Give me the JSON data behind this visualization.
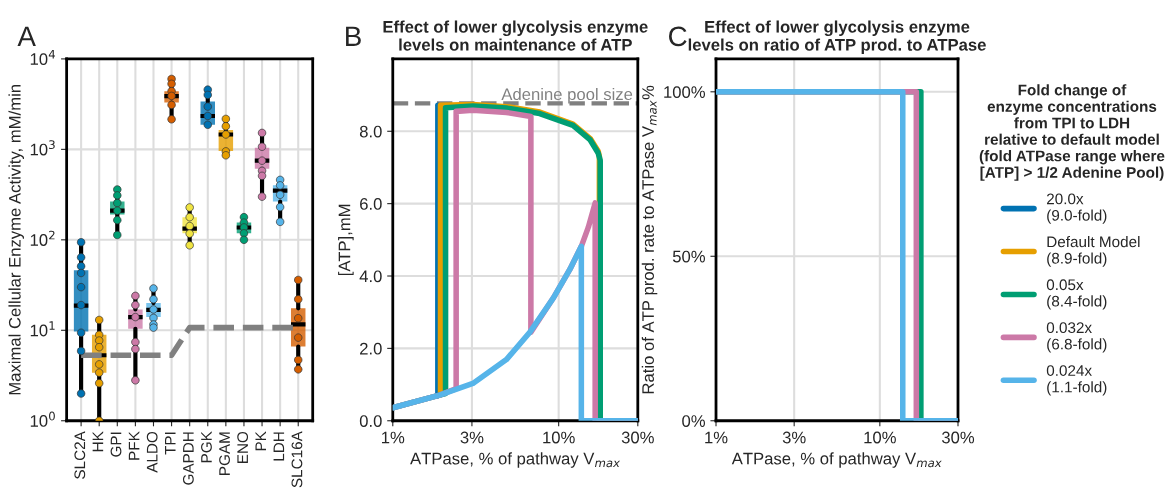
{
  "chart_data": [
    {
      "type": "box",
      "ylabel": "Maximal Cellular Enzyme Activity, mM/min",
      "annotations": [
        "A"
      ],
      "categories": [
        "SLC2A",
        "HK",
        "GPI",
        "PFK",
        "ALDO",
        "TPI",
        "GAPDH",
        "PGK",
        "PGAM",
        "ENO",
        "PK",
        "LDH",
        "SLC16A"
      ],
      "colors": [
        "#0072b2",
        "#e69f00",
        "#009e73",
        "#cc79a7",
        "#56b4e9",
        "#d55e00",
        "#f0e442",
        "#0072b2",
        "#e69f00",
        "#009e73",
        "#cc79a7",
        "#56b4e9",
        "#d55e00"
      ],
      "boxes": [
        {
          "low": 2.0,
          "q1": 9.7,
          "median": 18.7,
          "q3": 46,
          "high": 94
        },
        {
          "low": 1.0,
          "q1": 3.4,
          "median": 5.3,
          "q3": 8.9,
          "high": 13
        },
        {
          "low": 113,
          "q1": 190,
          "median": 210,
          "q3": 265,
          "high": 360
        },
        {
          "low": 2.8,
          "q1": 10.4,
          "median": 14,
          "q3": 17,
          "high": 24
        },
        {
          "low": 10.7,
          "q1": 14,
          "median": 16.8,
          "q3": 20,
          "high": 29
        },
        {
          "low": 2150,
          "q1": 3300,
          "median": 3880,
          "q3": 4400,
          "high": 6000
        },
        {
          "low": 87,
          "q1": 118,
          "median": 133,
          "q3": 178,
          "high": 228
        },
        {
          "low": 1820,
          "q1": 1870,
          "median": 2340,
          "q3": 3380,
          "high": 4570
        },
        {
          "low": 860,
          "q1": 960,
          "median": 1460,
          "q3": 1640,
          "high": 2170
        },
        {
          "low": 100,
          "q1": 118,
          "median": 137,
          "q3": 155,
          "high": 178
        },
        {
          "low": 300,
          "q1": 610,
          "median": 750,
          "q3": 1040,
          "high": 1520
        },
        {
          "low": 158,
          "q1": 265,
          "median": 350,
          "q3": 400,
          "high": 460
        },
        {
          "low": 3.7,
          "q1": 6.6,
          "median": 11.6,
          "q3": 17.5,
          "high": 36
        }
      ],
      "series": [
        {
          "type": "scatter",
          "x": [
            "SLC2A",
            "SLC2A",
            "SLC2A",
            "SLC2A",
            "SLC2A",
            "SLC2A",
            "SLC2A",
            "SLC2A",
            "SLC2A",
            "HK",
            "HK",
            "HK",
            "HK",
            "HK",
            "HK",
            "HK",
            "HK",
            "GPI",
            "GPI",
            "GPI",
            "GPI",
            "GPI",
            "GPI",
            "PFK",
            "PFK",
            "PFK",
            "PFK",
            "PFK",
            "PFK",
            "ALDO",
            "ALDO",
            "ALDO",
            "ALDO",
            "ALDO",
            "ALDO",
            "TPI",
            "TPI",
            "TPI",
            "TPI",
            "TPI",
            "TPI",
            "GAPDH",
            "GAPDH",
            "GAPDH",
            "GAPDH",
            "GAPDH",
            "PGK",
            "PGK",
            "PGK",
            "PGK",
            "PGK",
            "PGAM",
            "PGAM",
            "PGAM",
            "PGAM",
            "PGAM",
            "ENO",
            "ENO",
            "ENO",
            "ENO",
            "ENO",
            "PK",
            "PK",
            "PK",
            "PK",
            "PK",
            "PK",
            "LDH",
            "LDH",
            "LDH",
            "LDH",
            "LDH",
            "SLC16A",
            "SLC16A",
            "SLC16A",
            "SLC16A",
            "SLC16A",
            "SLC16A"
          ],
          "values": [
            94,
            64,
            51,
            43,
            30,
            19,
            9.4,
            5.9,
            2.0,
            13,
            8.9,
            7.7,
            6.5,
            4.2,
            3.4,
            2.6,
            1.0,
            360,
            310,
            255,
            210,
            165,
            113,
            24,
            19,
            14,
            7.4,
            6.2,
            2.8,
            29,
            22,
            17,
            13.7,
            11.6,
            10.7,
            6000,
            5300,
            4400,
            3900,
            3100,
            2150,
            228,
            178,
            142,
            117,
            87,
            4570,
            4000,
            2970,
            2340,
            1870,
            2170,
            1800,
            1460,
            950,
            860,
            178,
            155,
            137,
            118,
            100,
            1520,
            1070,
            750,
            580,
            510,
            300,
            460,
            400,
            315,
            230,
            158,
            36,
            22,
            13.6,
            8.3,
            4.7,
            3.7
          ],
          "colors": [
            "#0072b2",
            "#0072b2",
            "#0072b2",
            "#0072b2",
            "#0072b2",
            "#0072b2",
            "#0072b2",
            "#0072b2",
            "#0072b2",
            "#e69f00",
            "#e69f00",
            "#e69f00",
            "#e69f00",
            "#e69f00",
            "#e69f00",
            "#e69f00",
            "#e69f00",
            "#009e73",
            "#009e73",
            "#009e73",
            "#009e73",
            "#009e73",
            "#009e73",
            "#cc79a7",
            "#cc79a7",
            "#cc79a7",
            "#cc79a7",
            "#cc79a7",
            "#cc79a7",
            "#56b4e9",
            "#56b4e9",
            "#56b4e9",
            "#56b4e9",
            "#56b4e9",
            "#56b4e9",
            "#d55e00",
            "#d55e00",
            "#d55e00",
            "#d55e00",
            "#d55e00",
            "#d55e00",
            "#f0e442",
            "#f0e442",
            "#f0e442",
            "#f0e442",
            "#f0e442",
            "#0072b2",
            "#0072b2",
            "#0072b2",
            "#0072b2",
            "#0072b2",
            "#e69f00",
            "#e69f00",
            "#e69f00",
            "#e69f00",
            "#e69f00",
            "#009e73",
            "#009e73",
            "#009e73",
            "#009e73",
            "#009e73",
            "#cc79a7",
            "#cc79a7",
            "#cc79a7",
            "#cc79a7",
            "#cc79a7",
            "#cc79a7",
            "#56b4e9",
            "#56b4e9",
            "#56b4e9",
            "#56b4e9",
            "#56b4e9",
            "#d55e00",
            "#d55e00",
            "#d55e00",
            "#d55e00",
            "#d55e00",
            "#d55e00"
          ]
        },
        {
          "type": "line",
          "color": "#808080",
          "line_style": "dashed",
          "values": [
            5.3,
            5.3,
            5.3,
            5.3,
            5.3,
            5.3,
            10.7,
            10.7,
            10.7,
            10.7,
            10.7,
            10.7,
            10.7
          ]
        }
      ],
      "log": "y",
      "ylim": [
        1,
        10000
      ],
      "yticks": [
        {
          "value": 1,
          "label": "10$^{0}$"
        },
        {
          "value": 10,
          "label": "10$^{1}$"
        },
        {
          "value": 100,
          "label": "10$^{2}$"
        },
        {
          "value": 1000,
          "label": "10$^{3}$"
        },
        {
          "value": 10000,
          "label": "10$^{4}$"
        }
      ],
      "grid": true
    },
    {
      "type": "line",
      "title": "Effect of lower glycolysis enzyme\nlevels on maintenance of ATP",
      "annotations": [
        "B"
      ],
      "xlabel": "ATPase, % of pathway V$_{max}$",
      "ylabel": "[ATP],mM",
      "series": [
        {
          "color": "#0072b2",
          "x": [
            1.87,
            1.87
          ],
          "values": [
            0.69,
            8.72
          ]
        },
        {
          "color": "#e69f00",
          "x": [
            1.94,
            1.94,
            3.04,
            4.84,
            7.69,
            12.2,
            15.5,
            17.3,
            17.6,
            17.6,
            30
          ],
          "values": [
            0.72,
            8.72,
            8.74,
            8.68,
            8.53,
            8.2,
            7.8,
            7.45,
            7.3,
            0,
            0
          ]
        },
        {
          "color": "#009e73",
          "x": [
            1,
            1.915,
            2.08,
            2.08,
            3.04,
            4.84,
            7.69,
            12.2,
            15.5,
            17.3,
            17.8,
            17.8,
            30
          ],
          "values": [
            0.36,
            0.71,
            0.75,
            8.65,
            8.7,
            8.64,
            8.49,
            8.16,
            7.76,
            7.4,
            7.2,
            0,
            0
          ]
        },
        {
          "color": "#cc79a7",
          "x": [
            1,
            1.915,
            2.41,
            2.41,
            3.04,
            4.84,
            6.8,
            6.8,
            9.28,
            11.7,
            13.7,
            15.1,
            16.6,
            16.6,
            30
          ],
          "values": [
            0.36,
            0.71,
            0.89,
            8.55,
            8.58,
            8.52,
            8.41,
            2.45,
            3.39,
            4.19,
            4.82,
            5.35,
            6.02,
            0,
            0
          ]
        },
        {
          "color": "#56b4e9",
          "x": [
            1,
            1.915,
            3.04,
            4.84,
            6.71,
            9.28,
            11.7,
            13.7,
            13.7,
            30
          ],
          "values": [
            0.36,
            0.71,
            1.03,
            1.69,
            2.45,
            3.39,
            4.19,
            4.82,
            0,
            0
          ]
        }
      ],
      "ref_lines": [
        {
          "axis": "y",
          "value": 8.77,
          "label": "Adenine pool size",
          "color": "#808080",
          "line_style": "dashed"
        }
      ],
      "log": "x",
      "xlim": [
        1,
        30
      ],
      "xticks": [
        {
          "value": 1,
          "label": "1%"
        },
        {
          "value": 3,
          "label": "3%"
        },
        {
          "value": 10,
          "label": "10%"
        },
        {
          "value": 30,
          "label": "30%"
        }
      ],
      "ylim": [
        0,
        10
      ],
      "yticks": [
        {
          "value": 0,
          "label": "0.0"
        },
        {
          "value": 2,
          "label": "2.0"
        },
        {
          "value": 4,
          "label": "4.0"
        },
        {
          "value": 6,
          "label": "6.0"
        },
        {
          "value": 8,
          "label": "8.0"
        }
      ],
      "grid": true
    },
    {
      "type": "line",
      "title": "Effect of lower glycolysis enzyme\nlevels on ratio of ATP prod. to ATPase",
      "annotations": [
        "C"
      ],
      "xlabel": "ATPase, % of pathway V$_{max}$",
      "ylabel": "Ratio of ATP prod. rate to ATPase V$_{max}$%",
      "legend_title": "Fold change of\nenzyme concentrations\nfrom TPI to LDH\nrelative to default model\n(fold ATPase range where\n[ATP] > 1/2 Adenine Pool)",
      "series": [
        {
          "name": "20.0x\n(9.0-fold)",
          "color": "#0072b2"
        },
        {
          "name": "Default Model\n(8.9-fold)",
          "color": "#e69f00"
        },
        {
          "name": "0.05x\n(8.4-fold)",
          "color": "#009e73",
          "x": [
            1,
            17.8,
            17.8,
            30
          ],
          "values": [
            100,
            100,
            0,
            0
          ]
        },
        {
          "name": "0.032x\n(6.8-fold)",
          "color": "#cc79a7",
          "x": [
            1,
            16.7,
            16.7,
            30
          ],
          "values": [
            100,
            100,
            0,
            0
          ]
        },
        {
          "name": "0.024x\n(1.1-fold)",
          "color": "#56b4e9",
          "x": [
            1,
            13.8,
            13.8,
            30
          ],
          "values": [
            100,
            100,
            0,
            0
          ]
        }
      ],
      "log": "x",
      "xlim": [
        1,
        30
      ],
      "xticks": [
        {
          "value": 1,
          "label": "1%"
        },
        {
          "value": 3,
          "label": "3%"
        },
        {
          "value": 10,
          "label": "10%"
        },
        {
          "value": 30,
          "label": "30%"
        }
      ],
      "ylim": [
        0,
        110
      ],
      "yticks": [
        {
          "value": 0,
          "label": "0%"
        },
        {
          "value": 50,
          "label": "50%"
        },
        {
          "value": 100,
          "label": "100%"
        }
      ],
      "grid": true,
      "legend": "right"
    }
  ]
}
